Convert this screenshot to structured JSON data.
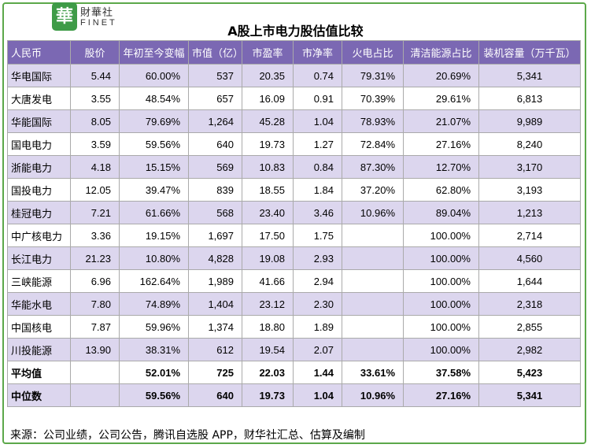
{
  "logo": {
    "badge_char": "華",
    "cn": "財華社",
    "en": "FINET"
  },
  "title": "A股上市电力股估值比较",
  "watermark": {
    "badge_char": "華",
    "cn": "財華社",
    "en": "FINET"
  },
  "table": {
    "headers": [
      "人民币",
      "股价",
      "年初至今变幅",
      "市值（亿）",
      "市盈率",
      "市净率",
      "火电占比",
      "清洁能源占比",
      "装机容量（万千瓦）"
    ],
    "rows": [
      [
        "华电国际",
        "5.44",
        "60.00%",
        "537",
        "20.35",
        "0.74",
        "79.31%",
        "20.69%",
        "5,341"
      ],
      [
        "大唐发电",
        "3.55",
        "48.54%",
        "657",
        "16.09",
        "0.91",
        "70.39%",
        "29.61%",
        "6,813"
      ],
      [
        "华能国际",
        "8.05",
        "79.69%",
        "1,264",
        "45.28",
        "1.04",
        "78.93%",
        "21.07%",
        "9,989"
      ],
      [
        "国电电力",
        "3.59",
        "59.56%",
        "640",
        "19.73",
        "1.27",
        "72.84%",
        "27.16%",
        "8,240"
      ],
      [
        "浙能电力",
        "4.18",
        "15.15%",
        "569",
        "10.83",
        "0.84",
        "87.30%",
        "12.70%",
        "3,170"
      ],
      [
        "国投电力",
        "12.05",
        "39.47%",
        "839",
        "18.55",
        "1.84",
        "37.20%",
        "62.80%",
        "3,193"
      ],
      [
        "桂冠电力",
        "7.21",
        "61.66%",
        "568",
        "23.40",
        "3.46",
        "10.96%",
        "89.04%",
        "1,213"
      ],
      [
        "中广核电力",
        "3.36",
        "19.15%",
        "1,697",
        "17.50",
        "1.75",
        "",
        "100.00%",
        "2,714"
      ],
      [
        "长江电力",
        "21.23",
        "10.80%",
        "4,828",
        "19.08",
        "2.93",
        "",
        "100.00%",
        "4,560"
      ],
      [
        "三峡能源",
        "6.96",
        "162.64%",
        "1,989",
        "41.66",
        "2.94",
        "",
        "100.00%",
        "1,644"
      ],
      [
        "华能水电",
        "7.80",
        "74.89%",
        "1,404",
        "23.12",
        "2.30",
        "",
        "100.00%",
        "2,318"
      ],
      [
        "中国核电",
        "7.87",
        "59.96%",
        "1,374",
        "18.80",
        "1.89",
        "",
        "100.00%",
        "2,855"
      ],
      [
        "川投能源",
        "13.90",
        "38.31%",
        "612",
        "19.54",
        "2.07",
        "",
        "100.00%",
        "2,982"
      ]
    ],
    "summary": [
      [
        "平均值",
        "",
        "52.01%",
        "725",
        "22.03",
        "1.44",
        "33.61%",
        "37.58%",
        "5,423"
      ],
      [
        "中位数",
        "",
        "59.56%",
        "640",
        "19.73",
        "1.04",
        "10.96%",
        "27.16%",
        "5,341"
      ]
    ]
  },
  "source": "来源：公司业绩，公司公告，腾讯自选股 APP，财华社汇总、估算及编制",
  "colors": {
    "header_bg": "#7b68b3",
    "row_alt_bg": "#dcd6ee",
    "frame": "#5ca84a",
    "brand_green": "#3e9b47"
  }
}
